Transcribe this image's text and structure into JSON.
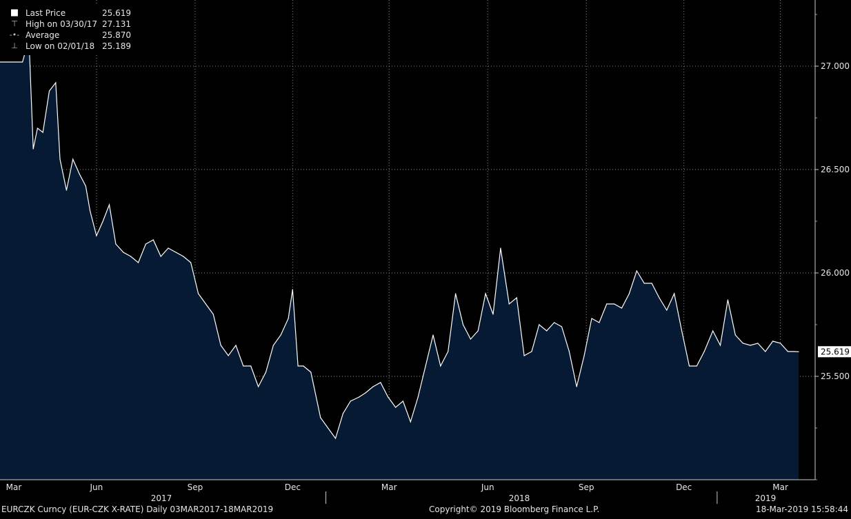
{
  "chart_data": {
    "type": "area",
    "series": [
      {
        "name": "Last Price",
        "x": [
          "2017-03-03",
          "2017-03-10",
          "2017-03-17",
          "2017-03-24",
          "2017-03-30",
          "2017-04-03",
          "2017-04-07",
          "2017-04-12",
          "2017-04-18",
          "2017-04-24",
          "2017-04-28",
          "2017-05-04",
          "2017-05-10",
          "2017-05-16",
          "2017-05-22",
          "2017-05-26",
          "2017-06-01",
          "2017-06-07",
          "2017-06-13",
          "2017-06-19",
          "2017-06-26",
          "2017-07-03",
          "2017-07-10",
          "2017-07-17",
          "2017-07-24",
          "2017-07-31",
          "2017-08-07",
          "2017-08-14",
          "2017-08-21",
          "2017-08-28",
          "2017-09-04",
          "2017-09-11",
          "2017-09-18",
          "2017-09-25",
          "2017-10-02",
          "2017-10-09",
          "2017-10-16",
          "2017-10-23",
          "2017-10-30",
          "2017-11-06",
          "2017-11-13",
          "2017-11-20",
          "2017-11-27",
          "2017-12-01",
          "2017-12-06",
          "2017-12-11",
          "2017-12-18",
          "2017-12-27",
          "2018-01-03",
          "2018-01-10",
          "2018-01-17",
          "2018-01-24",
          "2018-02-01",
          "2018-02-07",
          "2018-02-14",
          "2018-02-21",
          "2018-02-28",
          "2018-03-07",
          "2018-03-14",
          "2018-03-21",
          "2018-03-28",
          "2018-04-04",
          "2018-04-11",
          "2018-04-18",
          "2018-04-25",
          "2018-05-02",
          "2018-05-09",
          "2018-05-16",
          "2018-05-23",
          "2018-05-30",
          "2018-06-06",
          "2018-06-13",
          "2018-06-18",
          "2018-06-21",
          "2018-06-28",
          "2018-07-05",
          "2018-07-12",
          "2018-07-19",
          "2018-07-26",
          "2018-08-02",
          "2018-08-09",
          "2018-08-16",
          "2018-08-23",
          "2018-08-30",
          "2018-09-06",
          "2018-09-13",
          "2018-09-20",
          "2018-09-27",
          "2018-10-04",
          "2018-10-11",
          "2018-10-18",
          "2018-10-25",
          "2018-11-01",
          "2018-11-08",
          "2018-11-15",
          "2018-11-22",
          "2018-11-29",
          "2018-12-06",
          "2018-12-13",
          "2018-12-20",
          "2018-12-28",
          "2019-01-04",
          "2019-01-11",
          "2019-01-18",
          "2019-01-25",
          "2019-02-01",
          "2019-02-08",
          "2019-02-15",
          "2019-02-22",
          "2019-03-01",
          "2019-03-08",
          "2019-03-13",
          "2019-03-18"
        ],
        "y": [
          27.02,
          27.02,
          27.02,
          27.02,
          27.131,
          26.6,
          26.7,
          26.68,
          26.88,
          26.92,
          26.55,
          26.4,
          26.55,
          26.48,
          26.42,
          26.3,
          26.18,
          26.25,
          26.33,
          26.14,
          26.1,
          26.08,
          26.05,
          26.14,
          26.16,
          26.08,
          26.12,
          26.1,
          26.08,
          26.05,
          25.9,
          25.85,
          25.8,
          25.65,
          25.6,
          25.65,
          25.55,
          25.55,
          25.45,
          25.52,
          25.65,
          25.7,
          25.78,
          25.92,
          25.55,
          25.55,
          25.52,
          25.3,
          25.25,
          25.2,
          25.32,
          25.38,
          25.4,
          25.42,
          25.45,
          25.47,
          25.4,
          25.35,
          25.38,
          25.28,
          25.4,
          25.55,
          25.7,
          25.55,
          25.62,
          25.9,
          25.75,
          25.68,
          25.72,
          25.9,
          25.8,
          26.12,
          25.95,
          25.85,
          25.88,
          25.6,
          25.62,
          25.75,
          25.72,
          25.76,
          25.74,
          25.62,
          25.45,
          25.6,
          25.78,
          25.76,
          25.85,
          25.85,
          25.83,
          25.9,
          26.01,
          25.95,
          25.95,
          25.88,
          25.82,
          25.9,
          25.72,
          25.55,
          25.55,
          25.62,
          25.72,
          25.65,
          25.87,
          25.7,
          25.66,
          25.65,
          25.66,
          25.62,
          25.67,
          25.66,
          25.62,
          25.62,
          25.619
        ]
      }
    ],
    "ylim": [
      25.0,
      27.3
    ],
    "yticks": [
      "27.000",
      "26.500",
      "26.000",
      "25.500"
    ],
    "last_value_label": "25.619",
    "xticks": [
      "Mar",
      "Jun",
      "Sep",
      "Dec",
      "Mar",
      "Jun",
      "Sep",
      "Dec",
      "Mar"
    ],
    "year_labels": [
      "2017",
      "2018",
      "2019"
    ],
    "legend": [
      {
        "label": "Last Price",
        "value": "25.619"
      },
      {
        "label": "High on 03/30/17",
        "value": "27.131"
      },
      {
        "label": "Average",
        "value": "25.870"
      },
      {
        "label": "Low on 02/01/18",
        "value": "25.189"
      }
    ],
    "grid": true,
    "legend_position": "top-left",
    "colors": {
      "fill": "#061a33",
      "line": "#ffffff",
      "background": "#000000",
      "grid": "#8c8c8c"
    }
  },
  "footer": {
    "left": "EURCZK Curncy (EUR-CZK X-RATE)  Daily 03MAR2017-18MAR2019",
    "center": "Copyright© 2019 Bloomberg Finance L.P.",
    "right": "18-Mar-2019 15:58:44"
  }
}
